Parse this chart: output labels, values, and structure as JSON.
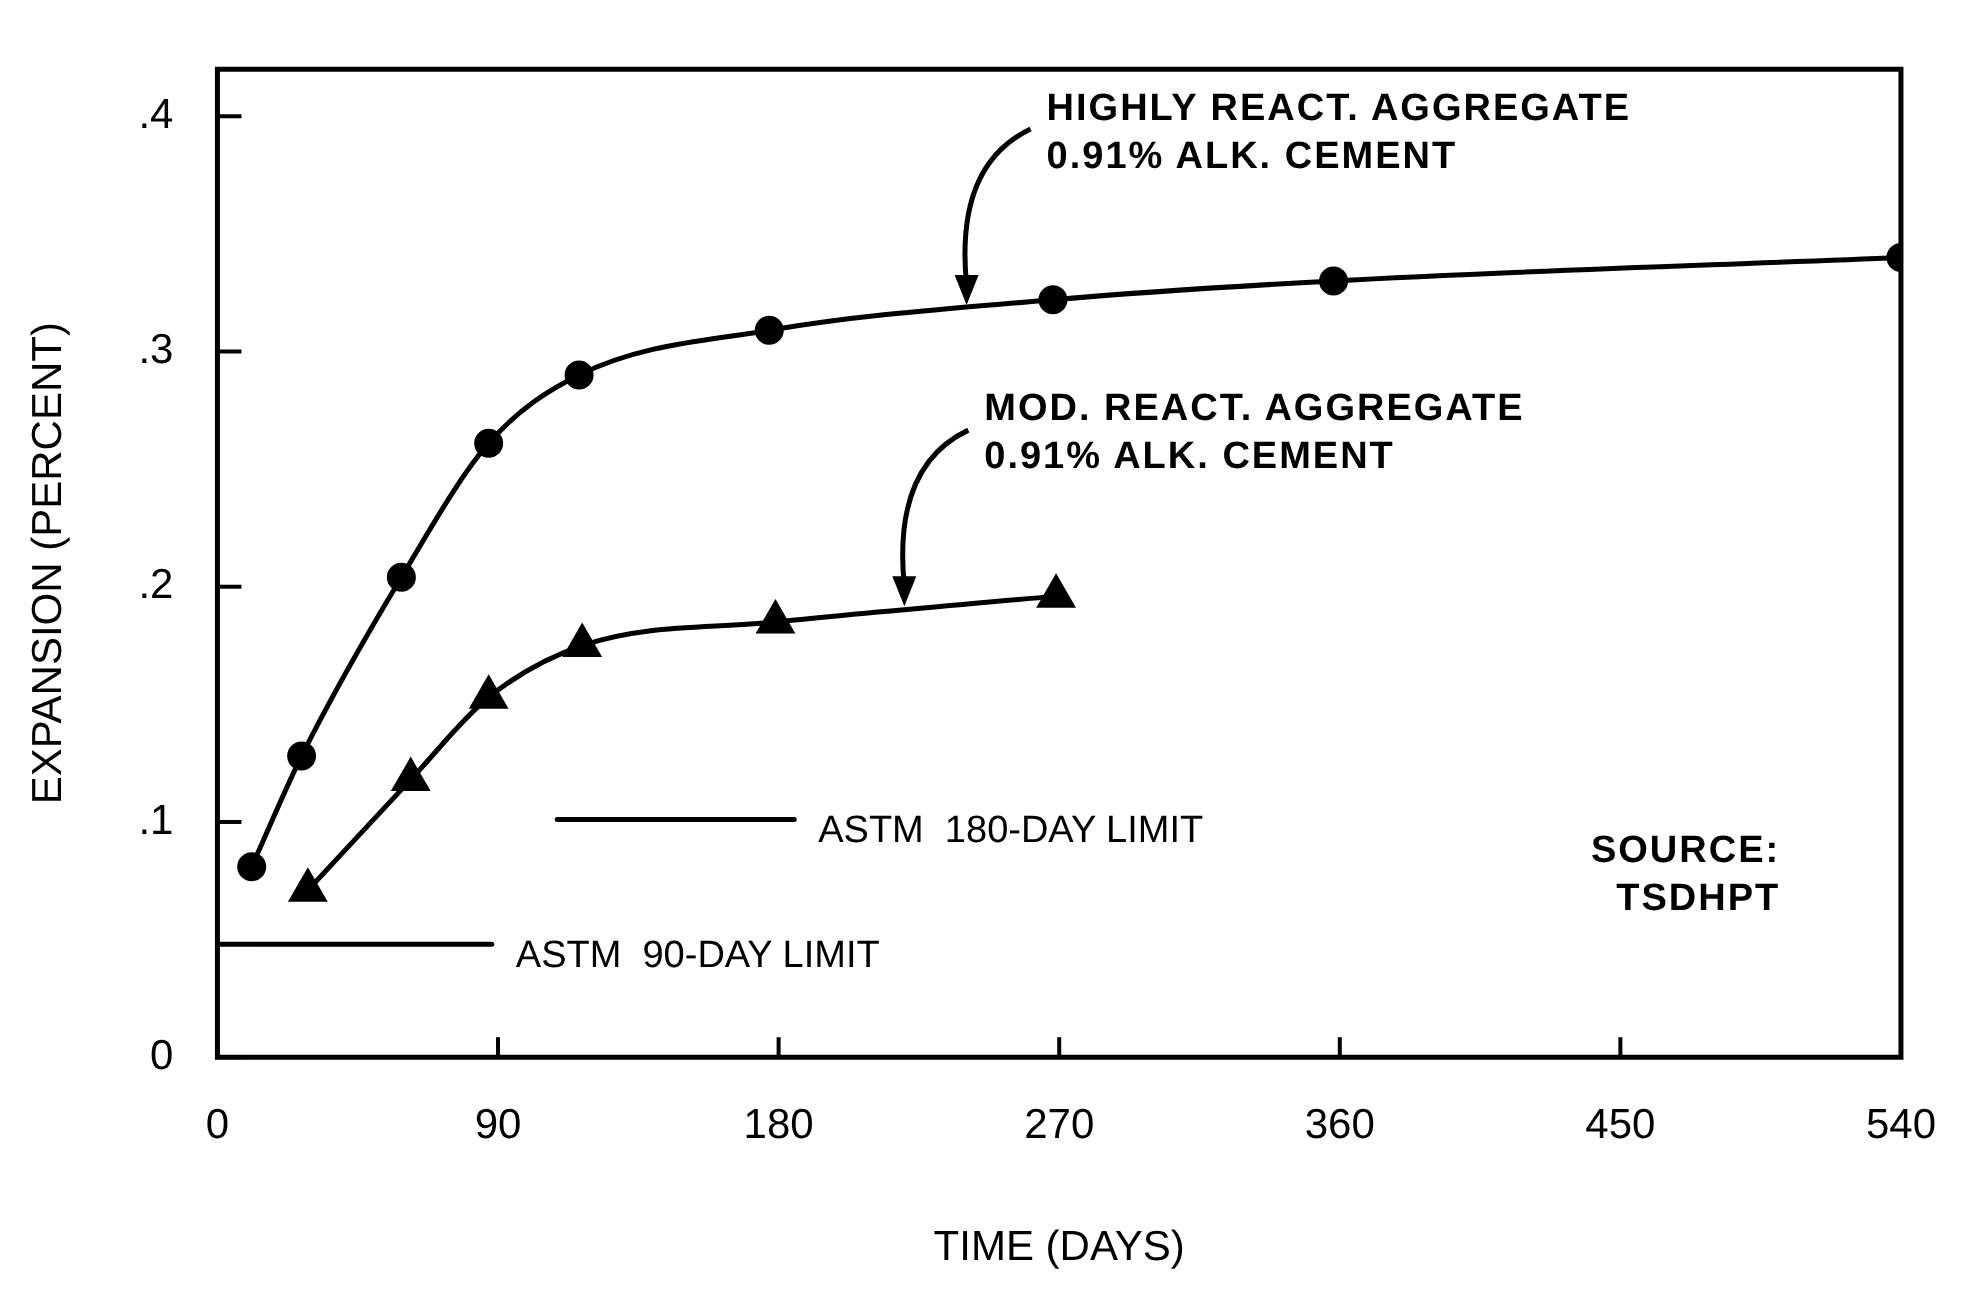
{
  "chart_data": {
    "type": "line",
    "xlabel": "TIME (DAYS)",
    "ylabel": "EXPANSION (PERCENT)",
    "xlim": [
      0,
      540
    ],
    "xticks": [
      0,
      90,
      180,
      270,
      360,
      450,
      540
    ],
    "ylim": [
      0,
      0.42
    ],
    "yticks": [
      0,
      {
        "value": 0.1,
        "label": ".1"
      },
      {
        "value": 0.2,
        "label": ".2"
      },
      {
        "value": 0.3,
        "label": ".3"
      },
      {
        "value": 0.4,
        "label": ".4"
      }
    ],
    "grid": false,
    "legend": false,
    "line_style": "solid",
    "series": [
      {
        "color": "#000000",
        "marker": "circle",
        "x": [
          11,
          27,
          59,
          87,
          116,
          177,
          268,
          358,
          540
        ],
        "values": [
          0.081,
          0.128,
          0.204,
          0.261,
          0.29,
          0.309,
          0.322,
          0.33,
          0.34
        ]
      },
      {
        "color": "#000000",
        "marker": "triangle",
        "x": [
          29,
          62,
          87,
          117,
          179,
          269
        ],
        "values": [
          0.071,
          0.118,
          0.153,
          0.175,
          0.185,
          0.196
        ]
      },
      {
        "name": "ASTM  90-DAY LIMIT",
        "color": "#000000",
        "marker": "none",
        "x": [
          0,
          88
        ],
        "values": [
          0.048,
          0.048
        ]
      },
      {
        "name": "ASTM  180-DAY LIMIT",
        "color": "#000000",
        "marker": "none",
        "x": [
          109,
          185
        ],
        "values": [
          0.101,
          0.101
        ]
      }
    ],
    "annotations": [
      "HIGHLY REACT. AGGREGATE\n0.91% ALK. CEMENT",
      "MOD. REACT. AGGREGATE\n0.91% ALK. CEMENT",
      "SOURCE:\nTSDHPT"
    ]
  }
}
